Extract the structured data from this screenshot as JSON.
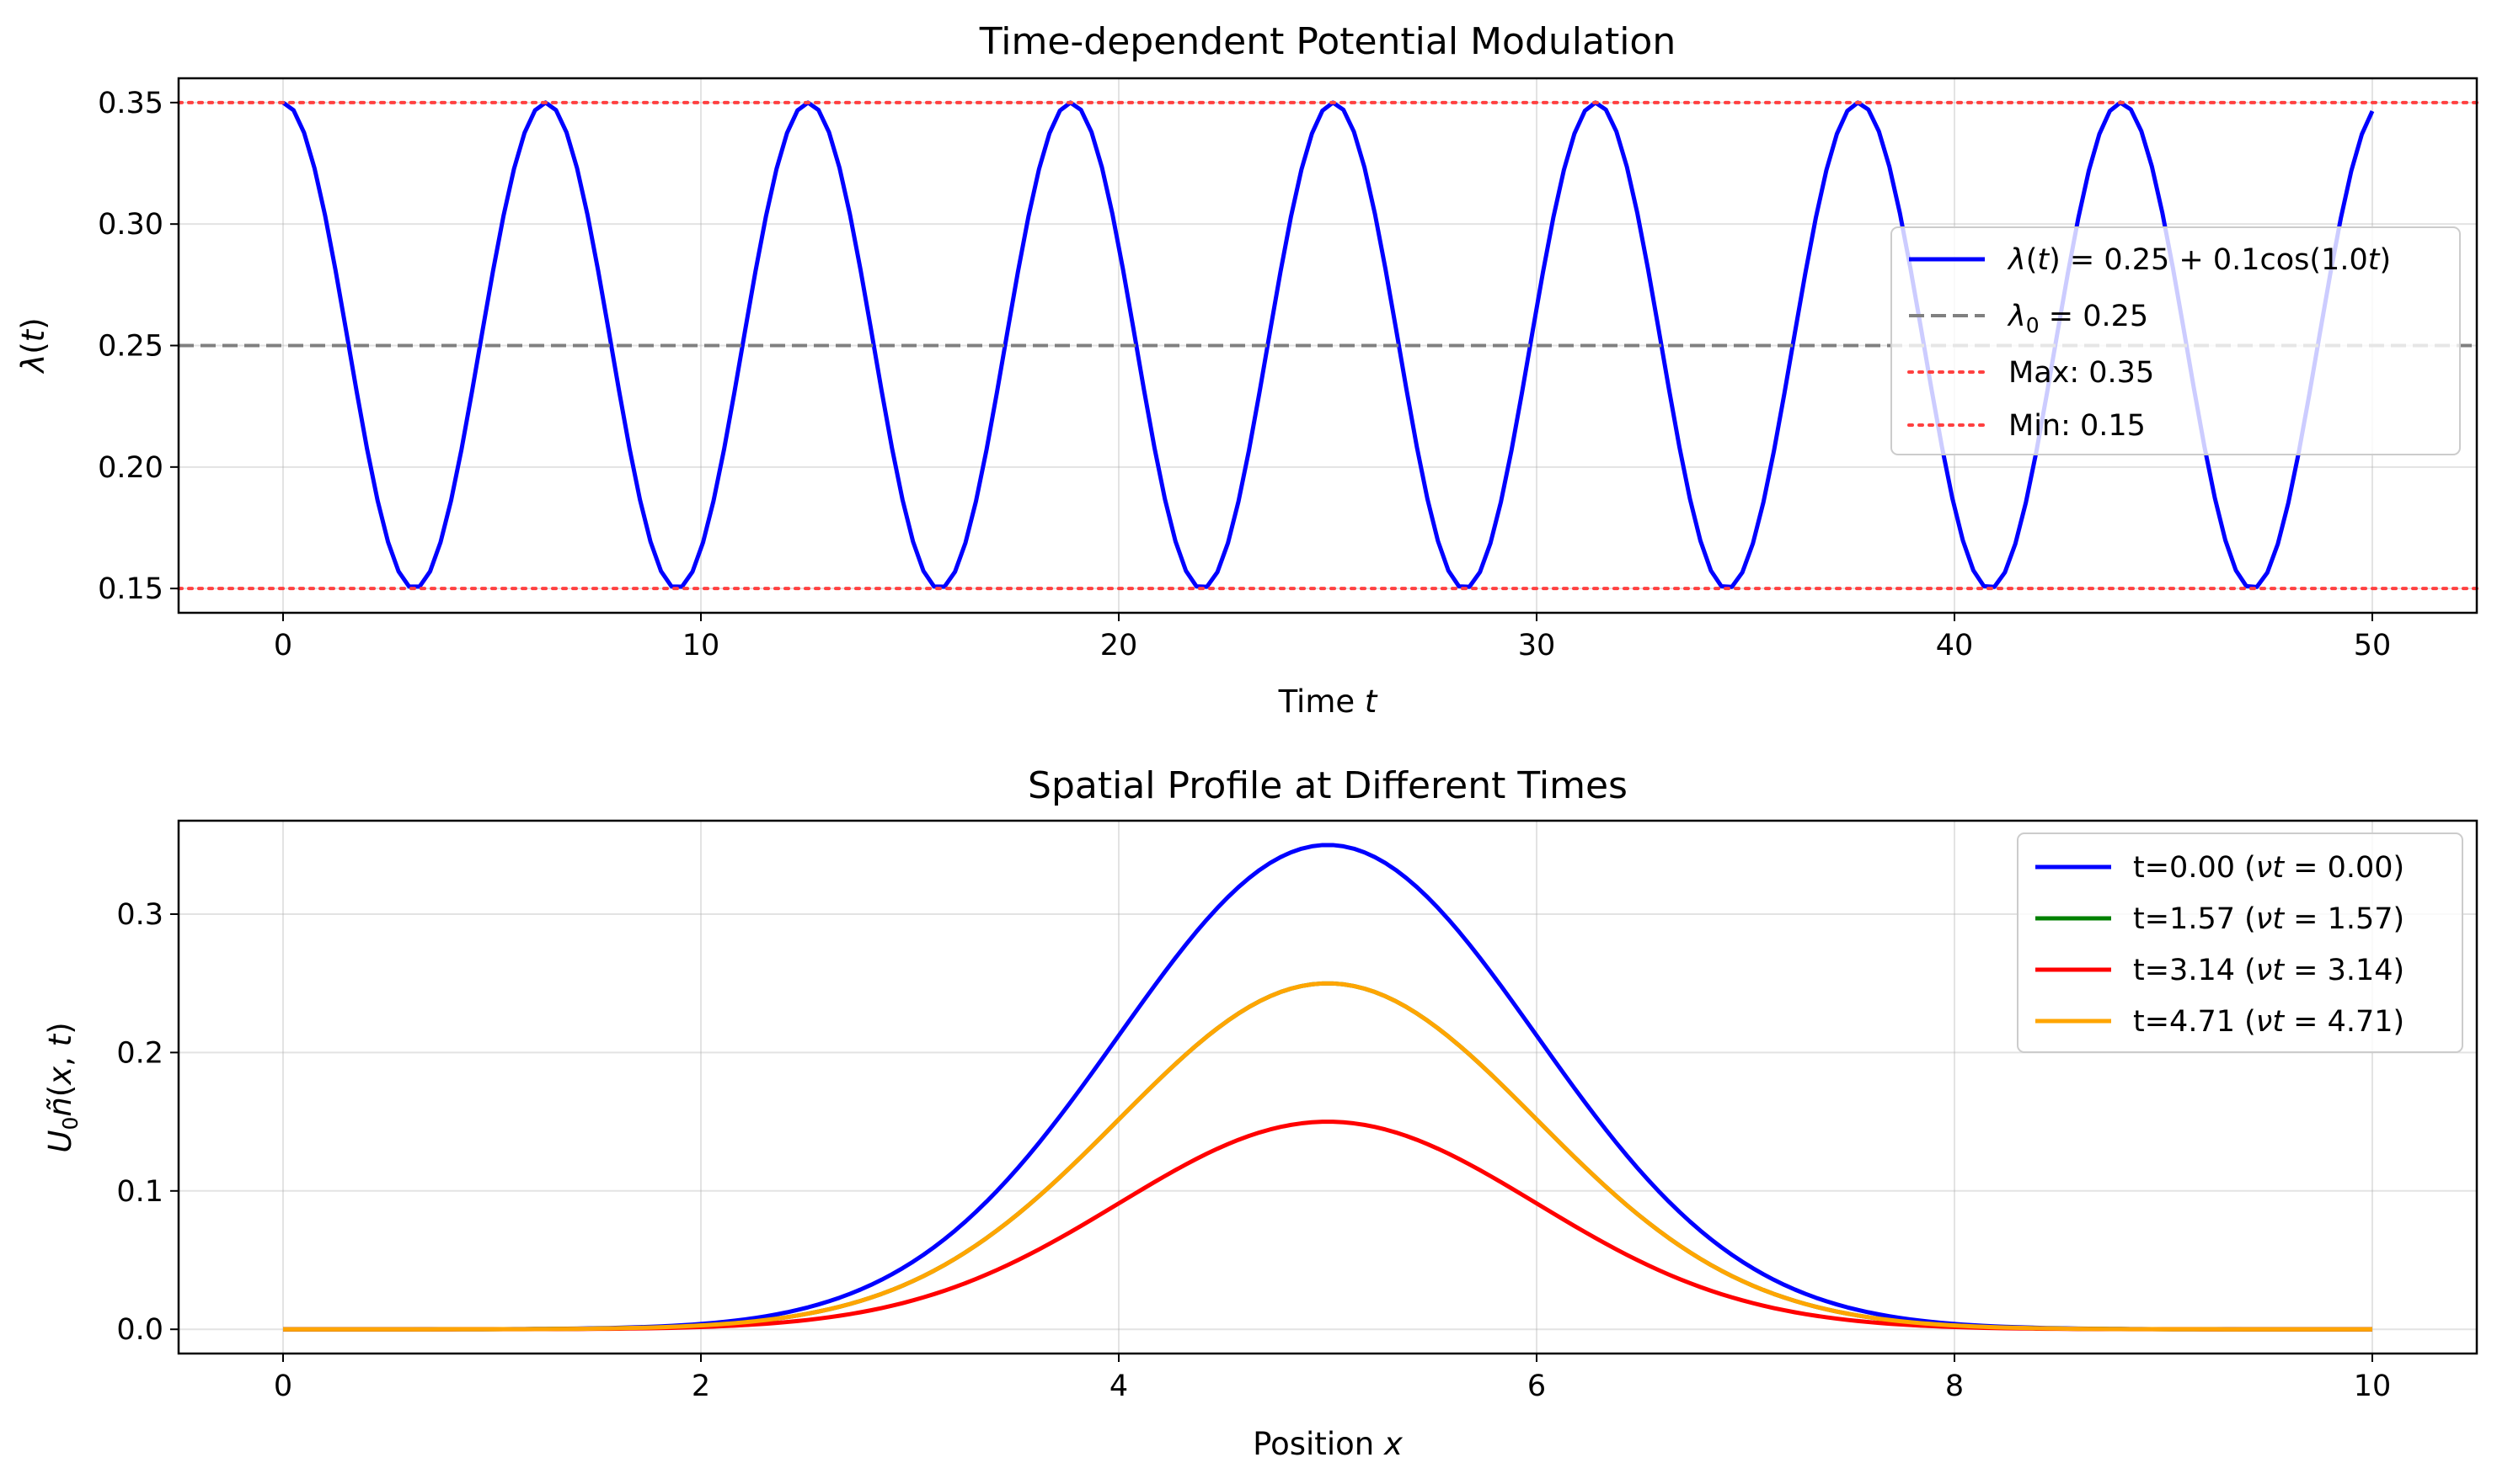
{
  "chart_data": [
    {
      "type": "line",
      "title": "Time-dependent Potential Modulation",
      "xlabel": "Time t",
      "ylabel": "λ(t)",
      "xlim": [
        -2.5,
        52.5
      ],
      "ylim": [
        0.14,
        0.36
      ],
      "xticks": [
        0,
        10,
        20,
        30,
        40,
        50
      ],
      "yticks": [
        0.15,
        0.2,
        0.25,
        0.3,
        0.35
      ],
      "xtick_labels": [
        "0",
        "10",
        "20",
        "30",
        "40",
        "50"
      ],
      "ytick_labels": [
        "0.15",
        "0.20",
        "0.25",
        "0.30",
        "0.35"
      ],
      "grid": true,
      "legend_position": "center-right",
      "series": [
        {
          "name": "λ(t) = 0.25 + 0.1cos(1.0t)",
          "color": "#0000ff",
          "style": "solid",
          "function": {
            "baseline": 0.25,
            "amplitude": 0.1,
            "frequency": 1.0
          },
          "x_range": [
            0,
            50
          ],
          "samples": 200
        },
        {
          "name": "λ₀ = 0.25",
          "color": "#808080",
          "style": "dashed",
          "hline": 0.25
        },
        {
          "name": "Max: 0.35",
          "color": "#ff4040",
          "style": "dotted",
          "hline": 0.35
        },
        {
          "name": "Min: 0.15",
          "color": "#ff4040",
          "style": "dotted",
          "hline": 0.15
        }
      ]
    },
    {
      "type": "line",
      "title": "Spatial Profile at Different Times",
      "xlabel": "Position x",
      "ylabel": "U₀ñ(x, t)",
      "xlim": [
        -0.5,
        10.5
      ],
      "ylim": [
        -0.0175,
        0.3675
      ],
      "xticks": [
        0,
        2,
        4,
        6,
        8,
        10
      ],
      "yticks": [
        0.0,
        0.1,
        0.2,
        0.3
      ],
      "xtick_labels": [
        "0",
        "2",
        "4",
        "6",
        "8",
        "10"
      ],
      "ytick_labels": [
        "0.0",
        "0.1",
        "0.2",
        "0.3"
      ],
      "grid": true,
      "legend_position": "top-right",
      "profile": {
        "center": 5.0,
        "width": 1.0,
        "x_range": [
          0,
          10
        ],
        "samples": 200
      },
      "series": [
        {
          "name": "t=0.00 (νt = 0.00)",
          "color": "#0000ff",
          "amplitude": 0.35
        },
        {
          "name": "t=1.57 (νt = 1.57)",
          "color": "#008000",
          "amplitude": 0.25
        },
        {
          "name": "t=3.14 (νt = 3.14)",
          "color": "#ff0000",
          "amplitude": 0.15
        },
        {
          "name": "t=4.71 (νt = 4.71)",
          "color": "#ffa500",
          "amplitude": 0.25
        }
      ]
    }
  ]
}
